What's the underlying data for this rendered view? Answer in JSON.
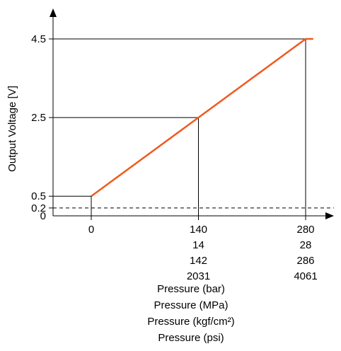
{
  "chart_data": {
    "type": "line",
    "title": "",
    "ylabel": "Output Voltage [V]",
    "xlabels": [
      "Pressure (bar)",
      "Pressure (MPa)",
      "Pressure (kgf/cm²)",
      "Pressure (psi)"
    ],
    "ylim": [
      0,
      5
    ],
    "xlim": [
      0,
      280
    ],
    "y_ticks": [
      {
        "value": 0,
        "label": "0"
      },
      {
        "value": 0.2,
        "label": "0.2"
      },
      {
        "value": 0.5,
        "label": "0.5"
      },
      {
        "value": 2.5,
        "label": "2.5"
      },
      {
        "value": 4.5,
        "label": "4.5"
      }
    ],
    "x_ticks": [
      {
        "value": 0,
        "labels": [
          "0"
        ]
      },
      {
        "value": 140,
        "labels": [
          "140",
          "14",
          "142",
          "2031"
        ]
      },
      {
        "value": 280,
        "labels": [
          "280",
          "28",
          "286",
          "4061"
        ]
      }
    ],
    "series": [
      {
        "color": "#f05a1e",
        "points": [
          [
            0,
            0.5
          ],
          [
            140,
            2.5
          ],
          [
            280,
            4.5
          ],
          [
            290,
            4.5
          ]
        ]
      }
    ],
    "reference_line": {
      "y": 0.2,
      "style": "dashed"
    }
  }
}
